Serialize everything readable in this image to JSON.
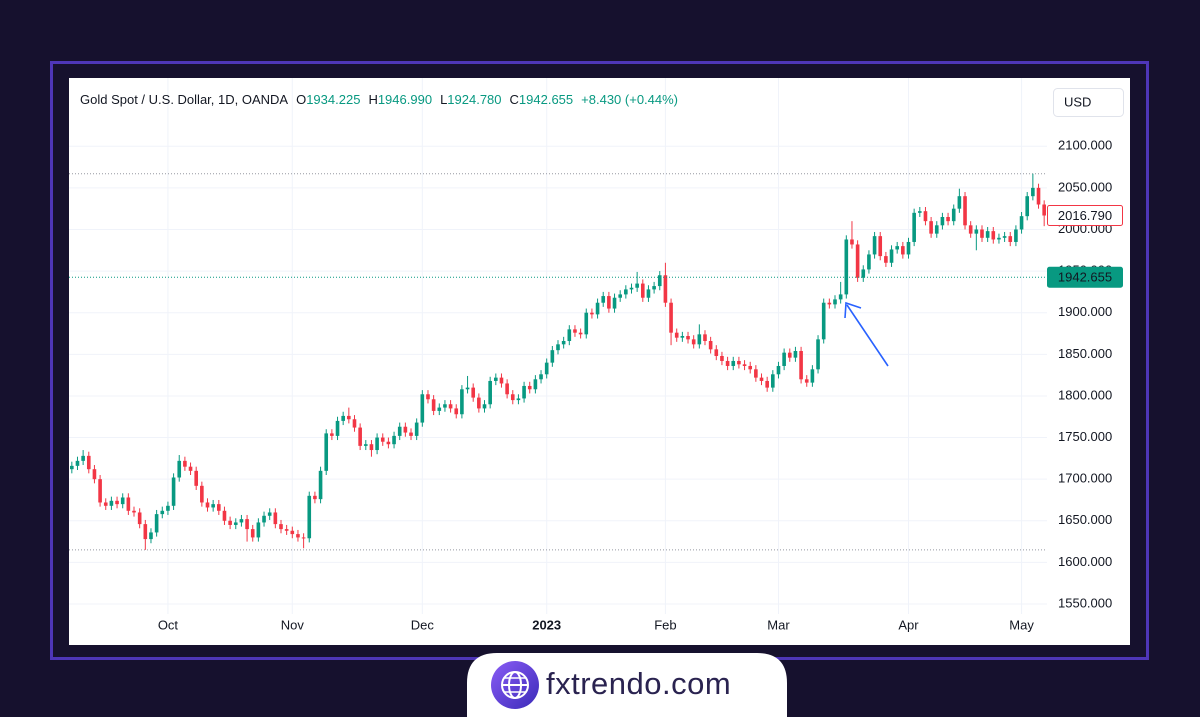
{
  "chart_data": {
    "type": "candlestick",
    "title": "Gold Spot / U.S. Dollar, 1D, OANDA",
    "ohlc_legend": [
      {
        "label": "O",
        "value": "1934.225"
      },
      {
        "label": "H",
        "value": "1946.990"
      },
      {
        "label": "L",
        "value": "1924.780"
      },
      {
        "label": "C",
        "value": "1942.655"
      }
    ],
    "change": "+8.430 (+0.44%)",
    "currency": "USD",
    "up_color": "#089981",
    "down_color": "#f23645",
    "grid": true,
    "ylim": [
      1538,
      2182
    ],
    "yticks": [
      {
        "value": 1550,
        "label": "1550.000"
      },
      {
        "value": 1600,
        "label": "1600.000"
      },
      {
        "value": 1650,
        "label": "1650.000"
      },
      {
        "value": 1700,
        "label": "1700.000"
      },
      {
        "value": 1750,
        "label": "1750.000"
      },
      {
        "value": 1800,
        "label": "1800.000"
      },
      {
        "value": 1850,
        "label": "1850.000"
      },
      {
        "value": 1900,
        "label": "1900.000"
      },
      {
        "value": 1950,
        "label": "1950.000"
      },
      {
        "value": 2000,
        "label": "2000.000"
      },
      {
        "value": 2050,
        "label": "2050.000"
      },
      {
        "value": 2100,
        "label": "2100.000"
      }
    ],
    "levels": [
      2067,
      1615
    ],
    "price_lines": [
      {
        "value": 2016.79,
        "label": "2016.790",
        "color": "#f23645",
        "style": "outline",
        "show_line": false
      },
      {
        "value": 1942.655,
        "label": "1942.655",
        "color": "#089981",
        "style": "filled",
        "show_line": true
      }
    ],
    "categories": [
      null,
      null,
      null,
      null,
      null,
      null,
      null,
      null,
      null,
      null,
      null,
      null,
      null,
      null,
      null,
      null,
      null,
      "Oct",
      null,
      null,
      null,
      null,
      null,
      null,
      null,
      null,
      null,
      null,
      null,
      null,
      null,
      null,
      null,
      null,
      null,
      null,
      null,
      null,
      null,
      "Nov",
      null,
      null,
      null,
      null,
      null,
      null,
      null,
      null,
      null,
      null,
      null,
      null,
      null,
      null,
      null,
      null,
      null,
      null,
      null,
      null,
      null,
      null,
      "Dec",
      null,
      null,
      null,
      null,
      null,
      null,
      null,
      null,
      null,
      null,
      null,
      null,
      null,
      null,
      null,
      null,
      null,
      null,
      null,
      null,
      null,
      "2023",
      null,
      null,
      null,
      null,
      null,
      null,
      null,
      null,
      null,
      null,
      null,
      null,
      null,
      null,
      null,
      null,
      null,
      null,
      null,
      null,
      "Feb",
      null,
      null,
      null,
      null,
      null,
      null,
      null,
      null,
      null,
      null,
      null,
      null,
      null,
      null,
      null,
      null,
      null,
      null,
      null,
      "Mar",
      null,
      null,
      null,
      null,
      null,
      null,
      null,
      null,
      null,
      null,
      null,
      null,
      null,
      null,
      null,
      null,
      null,
      null,
      null,
      null,
      null,
      null,
      "Apr",
      null,
      null,
      null,
      null,
      null,
      null,
      null,
      null,
      null,
      null,
      null,
      null,
      null,
      null,
      null,
      null,
      null,
      null,
      null,
      "May",
      null,
      null,
      null,
      null
    ],
    "open": [
      1712,
      1716,
      1722,
      1728,
      1712,
      1700,
      1672,
      1668,
      1674,
      1670,
      1678,
      1662,
      1660,
      1646,
      1628,
      1636,
      1658,
      1662,
      1668,
      1702,
      1722,
      1715,
      1710,
      1692,
      1672,
      1666,
      1670,
      1662,
      1650,
      1645,
      1648,
      1652,
      1640,
      1630,
      1648,
      1656,
      1660,
      1646,
      1640,
      1638,
      1634,
      1630,
      1629,
      1680,
      1676,
      1710,
      1755,
      1752,
      1770,
      1776,
      1772,
      1762,
      1740,
      1742,
      1735,
      1750,
      1745,
      1742,
      1752,
      1763,
      1756,
      1752,
      1768,
      1802,
      1796,
      1782,
      1786,
      1790,
      1785,
      1778,
      1808,
      1810,
      1798,
      1785,
      1790,
      1818,
      1822,
      1815,
      1802,
      1795,
      1797,
      1812,
      1808,
      1820,
      1826,
      1840,
      1855,
      1862,
      1866,
      1880,
      1876,
      1874,
      1900,
      1898,
      1912,
      1920,
      1905,
      1918,
      1922,
      1928,
      1930,
      1935,
      1918,
      1928,
      1932,
      1945,
      1912,
      1876,
      1870,
      1872,
      1868,
      1862,
      1874,
      1866,
      1856,
      1848,
      1842,
      1836,
      1842,
      1838,
      1836,
      1832,
      1822,
      1818,
      1810,
      1826,
      1836,
      1852,
      1846,
      1854,
      1820,
      1816,
      1832,
      1868,
      1912,
      1910,
      1916,
      1922,
      1988,
      1982,
      1942,
      1952,
      1970,
      1992,
      1968,
      1960,
      1976,
      1980,
      1970,
      1985,
      2020,
      2022,
      2010,
      1995,
      2005,
      2015,
      2010,
      2025,
      2040,
      2005,
      1995,
      2000,
      1990,
      1998,
      1988,
      1990,
      1992,
      1985,
      2000,
      2016,
      2040,
      2050,
      2030
    ],
    "high": [
      1721,
      1727,
      1735,
      1733,
      1717,
      1705,
      1677,
      1679,
      1679,
      1683,
      1683,
      1667,
      1665,
      1651,
      1641,
      1663,
      1667,
      1673,
      1707,
      1729,
      1727,
      1720,
      1715,
      1697,
      1677,
      1675,
      1675,
      1667,
      1655,
      1653,
      1657,
      1657,
      1645,
      1653,
      1661,
      1665,
      1665,
      1651,
      1645,
      1643,
      1639,
      1635,
      1685,
      1685,
      1715,
      1760,
      1760,
      1775,
      1781,
      1786,
      1777,
      1767,
      1747,
      1747,
      1755,
      1755,
      1750,
      1757,
      1768,
      1768,
      1761,
      1773,
      1807,
      1807,
      1801,
      1791,
      1795,
      1795,
      1790,
      1813,
      1824,
      1815,
      1803,
      1795,
      1823,
      1827,
      1827,
      1820,
      1807,
      1802,
      1817,
      1817,
      1825,
      1831,
      1845,
      1860,
      1867,
      1871,
      1885,
      1885,
      1881,
      1905,
      1905,
      1917,
      1925,
      1925,
      1923,
      1927,
      1933,
      1935,
      1949,
      1940,
      1933,
      1937,
      1950,
      1960,
      1917,
      1881,
      1877,
      1877,
      1873,
      1886,
      1879,
      1871,
      1861,
      1853,
      1847,
      1847,
      1847,
      1843,
      1841,
      1837,
      1827,
      1823,
      1831,
      1841,
      1857,
      1857,
      1859,
      1859,
      1825,
      1837,
      1873,
      1917,
      1917,
      1921,
      1937,
      1993,
      2010,
      1987,
      1957,
      1975,
      1997,
      1997,
      1973,
      1981,
      1985,
      1985,
      1990,
      2025,
      2027,
      2027,
      2015,
      2010,
      2020,
      2020,
      2030,
      2049,
      2045,
      2010,
      2005,
      2005,
      2003,
      2003,
      1995,
      1997,
      1997,
      2005,
      2021,
      2045,
      2067,
      2055,
      2035
    ],
    "low": [
      1707,
      1711,
      1717,
      1707,
      1695,
      1667,
      1663,
      1663,
      1665,
      1665,
      1657,
      1655,
      1641,
      1615,
      1623,
      1631,
      1653,
      1657,
      1663,
      1697,
      1710,
      1705,
      1687,
      1667,
      1661,
      1661,
      1657,
      1645,
      1640,
      1640,
      1643,
      1625,
      1625,
      1625,
      1643,
      1651,
      1641,
      1635,
      1633,
      1629,
      1625,
      1617,
      1624,
      1671,
      1671,
      1705,
      1747,
      1747,
      1765,
      1767,
      1757,
      1735,
      1735,
      1727,
      1730,
      1740,
      1737,
      1737,
      1747,
      1751,
      1747,
      1747,
      1763,
      1791,
      1777,
      1777,
      1781,
      1780,
      1773,
      1773,
      1803,
      1793,
      1780,
      1780,
      1785,
      1813,
      1810,
      1797,
      1790,
      1790,
      1792,
      1803,
      1803,
      1815,
      1821,
      1835,
      1850,
      1857,
      1861,
      1871,
      1869,
      1869,
      1893,
      1893,
      1907,
      1900,
      1900,
      1913,
      1917,
      1923,
      1925,
      1913,
      1913,
      1923,
      1927,
      1907,
      1861,
      1865,
      1865,
      1863,
      1857,
      1857,
      1861,
      1851,
      1843,
      1837,
      1831,
      1831,
      1833,
      1831,
      1827,
      1817,
      1813,
      1805,
      1805,
      1821,
      1831,
      1841,
      1841,
      1815,
      1811,
      1811,
      1827,
      1863,
      1905,
      1905,
      1911,
      1917,
      1977,
      1937,
      1937,
      1947,
      1965,
      1963,
      1955,
      1955,
      1971,
      1965,
      1965,
      1980,
      2015,
      2005,
      1990,
      1990,
      2000,
      2005,
      2005,
      2020,
      2000,
      1990,
      1975,
      1985,
      1985,
      1983,
      1983,
      1985,
      1980,
      1980,
      1995,
      2011,
      2035,
      2025,
      2004
    ],
    "close": [
      1716,
      1722,
      1728,
      1712,
      1700,
      1672,
      1668,
      1674,
      1670,
      1678,
      1662,
      1660,
      1646,
      1628,
      1636,
      1658,
      1662,
      1668,
      1702,
      1722,
      1715,
      1710,
      1692,
      1672,
      1666,
      1670,
      1662,
      1650,
      1645,
      1648,
      1652,
      1640,
      1630,
      1648,
      1656,
      1660,
      1646,
      1640,
      1638,
      1634,
      1630,
      1629,
      1680,
      1676,
      1710,
      1755,
      1752,
      1770,
      1776,
      1772,
      1762,
      1740,
      1742,
      1735,
      1750,
      1745,
      1742,
      1752,
      1763,
      1756,
      1752,
      1768,
      1802,
      1796,
      1782,
      1786,
      1790,
      1785,
      1778,
      1808,
      1810,
      1798,
      1785,
      1790,
      1818,
      1822,
      1815,
      1802,
      1795,
      1797,
      1812,
      1808,
      1820,
      1826,
      1840,
      1855,
      1862,
      1866,
      1880,
      1876,
      1874,
      1900,
      1898,
      1912,
      1920,
      1905,
      1918,
      1922,
      1928,
      1930,
      1935,
      1918,
      1928,
      1932,
      1945,
      1912,
      1876,
      1870,
      1872,
      1868,
      1862,
      1874,
      1866,
      1856,
      1848,
      1842,
      1836,
      1842,
      1838,
      1836,
      1832,
      1822,
      1818,
      1810,
      1826,
      1836,
      1852,
      1846,
      1854,
      1820,
      1816,
      1832,
      1868,
      1912,
      1910,
      1916,
      1922,
      1988,
      1982,
      1942,
      1952,
      1970,
      1992,
      1968,
      1960,
      1976,
      1980,
      1970,
      1985,
      2020,
      2022,
      2010,
      1995,
      2005,
      2015,
      2010,
      2025,
      2040,
      2005,
      1995,
      2000,
      1990,
      1998,
      1988,
      1990,
      1992,
      1985,
      2000,
      2016,
      2040,
      2050,
      2030,
      2016.79
    ]
  },
  "brand": "fxtrendo.com"
}
